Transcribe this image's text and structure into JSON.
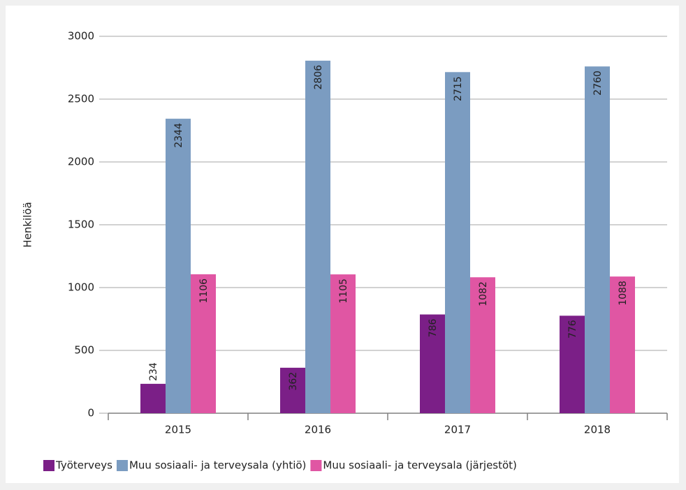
{
  "chart_data": {
    "type": "bar",
    "ylabel": "Henkilöä",
    "categories": [
      "2015",
      "2016",
      "2017",
      "2018"
    ],
    "series": [
      {
        "name": "Työterveys",
        "color": "#7b1f87",
        "values": [
          234,
          362,
          786,
          776
        ]
      },
      {
        "name": "Muu sosiaali- ja terveysala (yhtiö)",
        "color": "#7b9cc1",
        "values": [
          2344,
          2806,
          2715,
          2760
        ]
      },
      {
        "name": "Muu sosiaali- ja terveysala (järjestöt)",
        "color": "#e056a3",
        "values": [
          1106,
          1105,
          1082,
          1088
        ]
      }
    ],
    "ylim": [
      0,
      3000
    ],
    "yticks": [
      0,
      500,
      1000,
      1500,
      2000,
      2500,
      3000
    ],
    "grid": true,
    "legend": "bottom"
  }
}
